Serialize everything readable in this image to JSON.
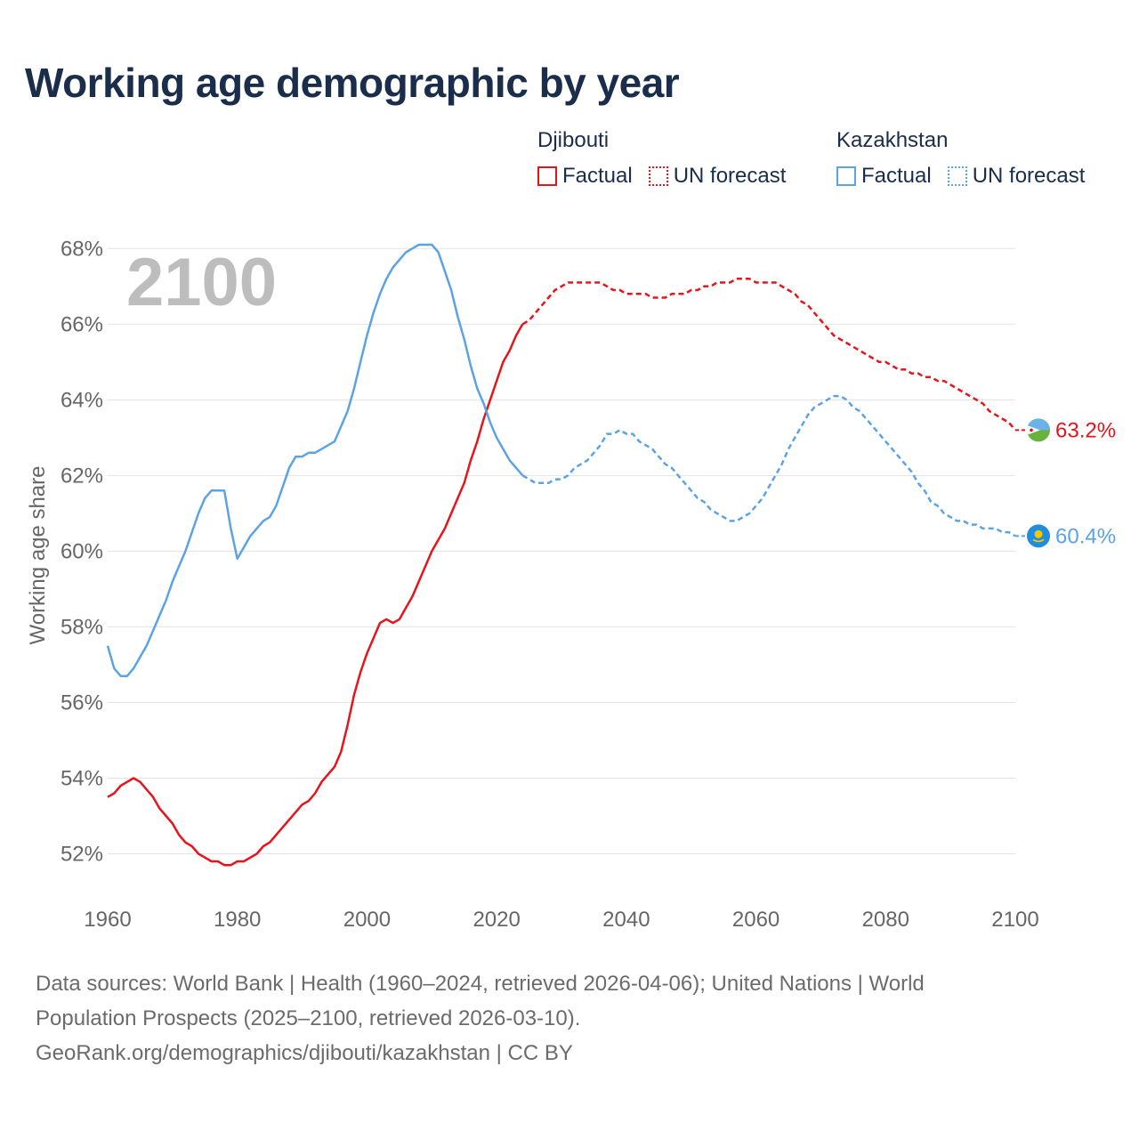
{
  "title": "Working age demographic by year",
  "year_label": "2100",
  "legend": {
    "groups": [
      {
        "country": "Djibouti",
        "factual_label": "Factual",
        "forecast_label": "UN forecast",
        "color": "#e8141b"
      },
      {
        "country": "Kazakhstan",
        "factual_label": "Factual",
        "forecast_label": "UN forecast",
        "color": "#5ca3e6"
      }
    ]
  },
  "footer": {
    "line1": "Data sources: World Bank | Health (1960–2024, retrieved 2026-04-06); United Nations | World",
    "line2": "Population Prospects (2025–2100, retrieved 2026-03-10).",
    "line3": "GeoRank.org/demographics/djibouti/kazakhstan | CC BY"
  },
  "chart_data": {
    "type": "line",
    "title": "Working age demographic by year",
    "xlabel": "",
    "ylabel": "Working age share",
    "xlim": [
      1960,
      2100
    ],
    "ylim": [
      51,
      68.5
    ],
    "x_ticks": [
      1960,
      1980,
      2000,
      2020,
      2040,
      2060,
      2080,
      2100
    ],
    "x_tick_labels": [
      "1960",
      "1980",
      "2000",
      "2020",
      "2040",
      "2060",
      "2080",
      "2100"
    ],
    "y_ticks": [
      52,
      54,
      56,
      58,
      60,
      62,
      64,
      66,
      68
    ],
    "y_tick_labels": [
      "52%",
      "54%",
      "56%",
      "58%",
      "60%",
      "62%",
      "64%",
      "66%",
      "68%"
    ],
    "grid": true,
    "forecast_start": 2024,
    "series": [
      {
        "name": "Djibouti",
        "color": "#e8141b",
        "end_label": "63.2%",
        "end_icon": "djibouti-flag-icon",
        "points": [
          [
            1960,
            53.5
          ],
          [
            1961,
            53.6
          ],
          [
            1962,
            53.8
          ],
          [
            1963,
            53.9
          ],
          [
            1964,
            54.0
          ],
          [
            1965,
            53.9
          ],
          [
            1966,
            53.7
          ],
          [
            1967,
            53.5
          ],
          [
            1968,
            53.2
          ],
          [
            1969,
            53.0
          ],
          [
            1970,
            52.8
          ],
          [
            1971,
            52.5
          ],
          [
            1972,
            52.3
          ],
          [
            1973,
            52.2
          ],
          [
            1974,
            52.0
          ],
          [
            1975,
            51.9
          ],
          [
            1976,
            51.8
          ],
          [
            1977,
            51.8
          ],
          [
            1978,
            51.7
          ],
          [
            1979,
            51.7
          ],
          [
            1980,
            51.8
          ],
          [
            1981,
            51.8
          ],
          [
            1982,
            51.9
          ],
          [
            1983,
            52.0
          ],
          [
            1984,
            52.2
          ],
          [
            1985,
            52.3
          ],
          [
            1986,
            52.5
          ],
          [
            1987,
            52.7
          ],
          [
            1988,
            52.9
          ],
          [
            1989,
            53.1
          ],
          [
            1990,
            53.3
          ],
          [
            1991,
            53.4
          ],
          [
            1992,
            53.6
          ],
          [
            1993,
            53.9
          ],
          [
            1994,
            54.1
          ],
          [
            1995,
            54.3
          ],
          [
            1996,
            54.7
          ],
          [
            1997,
            55.4
          ],
          [
            1998,
            56.2
          ],
          [
            1999,
            56.8
          ],
          [
            2000,
            57.3
          ],
          [
            2001,
            57.7
          ],
          [
            2002,
            58.1
          ],
          [
            2003,
            58.2
          ],
          [
            2004,
            58.1
          ],
          [
            2005,
            58.2
          ],
          [
            2006,
            58.5
          ],
          [
            2007,
            58.8
          ],
          [
            2008,
            59.2
          ],
          [
            2009,
            59.6
          ],
          [
            2010,
            60.0
          ],
          [
            2011,
            60.3
          ],
          [
            2012,
            60.6
          ],
          [
            2013,
            61.0
          ],
          [
            2014,
            61.4
          ],
          [
            2015,
            61.8
          ],
          [
            2016,
            62.4
          ],
          [
            2017,
            62.9
          ],
          [
            2018,
            63.5
          ],
          [
            2019,
            64.0
          ],
          [
            2020,
            64.5
          ],
          [
            2021,
            65.0
          ],
          [
            2022,
            65.3
          ],
          [
            2023,
            65.7
          ],
          [
            2024,
            66.0
          ],
          [
            2025,
            66.1
          ],
          [
            2026,
            66.3
          ],
          [
            2027,
            66.5
          ],
          [
            2028,
            66.7
          ],
          [
            2029,
            66.9
          ],
          [
            2030,
            67.0
          ],
          [
            2031,
            67.1
          ],
          [
            2032,
            67.1
          ],
          [
            2033,
            67.1
          ],
          [
            2034,
            67.1
          ],
          [
            2035,
            67.1
          ],
          [
            2036,
            67.1
          ],
          [
            2037,
            67.0
          ],
          [
            2038,
            66.9
          ],
          [
            2039,
            66.9
          ],
          [
            2040,
            66.8
          ],
          [
            2041,
            66.8
          ],
          [
            2042,
            66.8
          ],
          [
            2043,
            66.8
          ],
          [
            2044,
            66.7
          ],
          [
            2045,
            66.7
          ],
          [
            2046,
            66.7
          ],
          [
            2047,
            66.8
          ],
          [
            2048,
            66.8
          ],
          [
            2049,
            66.8
          ],
          [
            2050,
            66.9
          ],
          [
            2051,
            66.9
          ],
          [
            2052,
            67.0
          ],
          [
            2053,
            67.0
          ],
          [
            2054,
            67.1
          ],
          [
            2055,
            67.1
          ],
          [
            2056,
            67.1
          ],
          [
            2057,
            67.2
          ],
          [
            2058,
            67.2
          ],
          [
            2059,
            67.2
          ],
          [
            2060,
            67.1
          ],
          [
            2061,
            67.1
          ],
          [
            2062,
            67.1
          ],
          [
            2063,
            67.1
          ],
          [
            2064,
            67.0
          ],
          [
            2065,
            66.9
          ],
          [
            2066,
            66.8
          ],
          [
            2067,
            66.6
          ],
          [
            2068,
            66.5
          ],
          [
            2069,
            66.3
          ],
          [
            2070,
            66.1
          ],
          [
            2071,
            65.9
          ],
          [
            2072,
            65.7
          ],
          [
            2073,
            65.6
          ],
          [
            2074,
            65.5
          ],
          [
            2075,
            65.4
          ],
          [
            2076,
            65.3
          ],
          [
            2077,
            65.2
          ],
          [
            2078,
            65.1
          ],
          [
            2079,
            65.0
          ],
          [
            2080,
            65.0
          ],
          [
            2081,
            64.9
          ],
          [
            2082,
            64.8
          ],
          [
            2083,
            64.8
          ],
          [
            2084,
            64.7
          ],
          [
            2085,
            64.7
          ],
          [
            2086,
            64.6
          ],
          [
            2087,
            64.6
          ],
          [
            2088,
            64.5
          ],
          [
            2089,
            64.5
          ],
          [
            2090,
            64.4
          ],
          [
            2091,
            64.3
          ],
          [
            2092,
            64.2
          ],
          [
            2093,
            64.1
          ],
          [
            2094,
            64.0
          ],
          [
            2095,
            63.9
          ],
          [
            2096,
            63.7
          ],
          [
            2097,
            63.6
          ],
          [
            2098,
            63.5
          ],
          [
            2099,
            63.4
          ],
          [
            2100,
            63.2
          ]
        ]
      },
      {
        "name": "Kazakhstan",
        "color": "#5ca3e6",
        "end_label": "60.4%",
        "end_icon": "kazakhstan-flag-icon",
        "points": [
          [
            1960,
            57.5
          ],
          [
            1961,
            56.9
          ],
          [
            1962,
            56.7
          ],
          [
            1963,
            56.7
          ],
          [
            1964,
            56.9
          ],
          [
            1965,
            57.2
          ],
          [
            1966,
            57.5
          ],
          [
            1967,
            57.9
          ],
          [
            1968,
            58.3
          ],
          [
            1969,
            58.7
          ],
          [
            1970,
            59.2
          ],
          [
            1971,
            59.6
          ],
          [
            1972,
            60.0
          ],
          [
            1973,
            60.5
          ],
          [
            1974,
            61.0
          ],
          [
            1975,
            61.4
          ],
          [
            1976,
            61.6
          ],
          [
            1977,
            61.6
          ],
          [
            1978,
            61.6
          ],
          [
            1979,
            60.6
          ],
          [
            1980,
            59.8
          ],
          [
            1981,
            60.1
          ],
          [
            1982,
            60.4
          ],
          [
            1983,
            60.6
          ],
          [
            1984,
            60.8
          ],
          [
            1985,
            60.9
          ],
          [
            1986,
            61.2
          ],
          [
            1987,
            61.7
          ],
          [
            1988,
            62.2
          ],
          [
            1989,
            62.5
          ],
          [
            1990,
            62.5
          ],
          [
            1991,
            62.6
          ],
          [
            1992,
            62.6
          ],
          [
            1993,
            62.7
          ],
          [
            1994,
            62.8
          ],
          [
            1995,
            62.9
          ],
          [
            1996,
            63.3
          ],
          [
            1997,
            63.7
          ],
          [
            1998,
            64.3
          ],
          [
            1999,
            65.0
          ],
          [
            2000,
            65.7
          ],
          [
            2001,
            66.3
          ],
          [
            2002,
            66.8
          ],
          [
            2003,
            67.2
          ],
          [
            2004,
            67.5
          ],
          [
            2005,
            67.7
          ],
          [
            2006,
            67.9
          ],
          [
            2007,
            68.0
          ],
          [
            2008,
            68.1
          ],
          [
            2009,
            68.1
          ],
          [
            2010,
            68.1
          ],
          [
            2011,
            67.9
          ],
          [
            2012,
            67.4
          ],
          [
            2013,
            66.9
          ],
          [
            2014,
            66.2
          ],
          [
            2015,
            65.6
          ],
          [
            2016,
            64.9
          ],
          [
            2017,
            64.3
          ],
          [
            2018,
            63.9
          ],
          [
            2019,
            63.4
          ],
          [
            2020,
            63.0
          ],
          [
            2021,
            62.7
          ],
          [
            2022,
            62.4
          ],
          [
            2023,
            62.2
          ],
          [
            2024,
            62.0
          ],
          [
            2025,
            61.9
          ],
          [
            2026,
            61.8
          ],
          [
            2027,
            61.8
          ],
          [
            2028,
            61.8
          ],
          [
            2029,
            61.9
          ],
          [
            2030,
            61.9
          ],
          [
            2031,
            62.0
          ],
          [
            2032,
            62.2
          ],
          [
            2033,
            62.3
          ],
          [
            2034,
            62.4
          ],
          [
            2035,
            62.6
          ],
          [
            2036,
            62.8
          ],
          [
            2037,
            63.1
          ],
          [
            2038,
            63.1
          ],
          [
            2039,
            63.2
          ],
          [
            2040,
            63.1
          ],
          [
            2041,
            63.1
          ],
          [
            2042,
            62.9
          ],
          [
            2043,
            62.8
          ],
          [
            2044,
            62.7
          ],
          [
            2045,
            62.5
          ],
          [
            2046,
            62.3
          ],
          [
            2047,
            62.2
          ],
          [
            2048,
            62.0
          ],
          [
            2049,
            61.8
          ],
          [
            2050,
            61.6
          ],
          [
            2051,
            61.4
          ],
          [
            2052,
            61.3
          ],
          [
            2053,
            61.1
          ],
          [
            2054,
            61.0
          ],
          [
            2055,
            60.9
          ],
          [
            2056,
            60.8
          ],
          [
            2057,
            60.8
          ],
          [
            2058,
            60.9
          ],
          [
            2059,
            61.0
          ],
          [
            2060,
            61.2
          ],
          [
            2061,
            61.4
          ],
          [
            2062,
            61.7
          ],
          [
            2063,
            62.0
          ],
          [
            2064,
            62.3
          ],
          [
            2065,
            62.7
          ],
          [
            2066,
            63.0
          ],
          [
            2067,
            63.3
          ],
          [
            2068,
            63.6
          ],
          [
            2069,
            63.8
          ],
          [
            2070,
            63.9
          ],
          [
            2071,
            64.0
          ],
          [
            2072,
            64.1
          ],
          [
            2073,
            64.1
          ],
          [
            2074,
            64.0
          ],
          [
            2075,
            63.8
          ],
          [
            2076,
            63.7
          ],
          [
            2077,
            63.5
          ],
          [
            2078,
            63.3
          ],
          [
            2079,
            63.1
          ],
          [
            2080,
            62.9
          ],
          [
            2081,
            62.7
          ],
          [
            2082,
            62.5
          ],
          [
            2083,
            62.3
          ],
          [
            2084,
            62.1
          ],
          [
            2085,
            61.8
          ],
          [
            2086,
            61.6
          ],
          [
            2087,
            61.3
          ],
          [
            2088,
            61.2
          ],
          [
            2089,
            61.0
          ],
          [
            2090,
            60.9
          ],
          [
            2091,
            60.8
          ],
          [
            2092,
            60.8
          ],
          [
            2093,
            60.7
          ],
          [
            2094,
            60.7
          ],
          [
            2095,
            60.6
          ],
          [
            2096,
            60.6
          ],
          [
            2097,
            60.6
          ],
          [
            2098,
            60.5
          ],
          [
            2099,
            60.5
          ],
          [
            2100,
            60.4
          ]
        ]
      }
    ]
  }
}
